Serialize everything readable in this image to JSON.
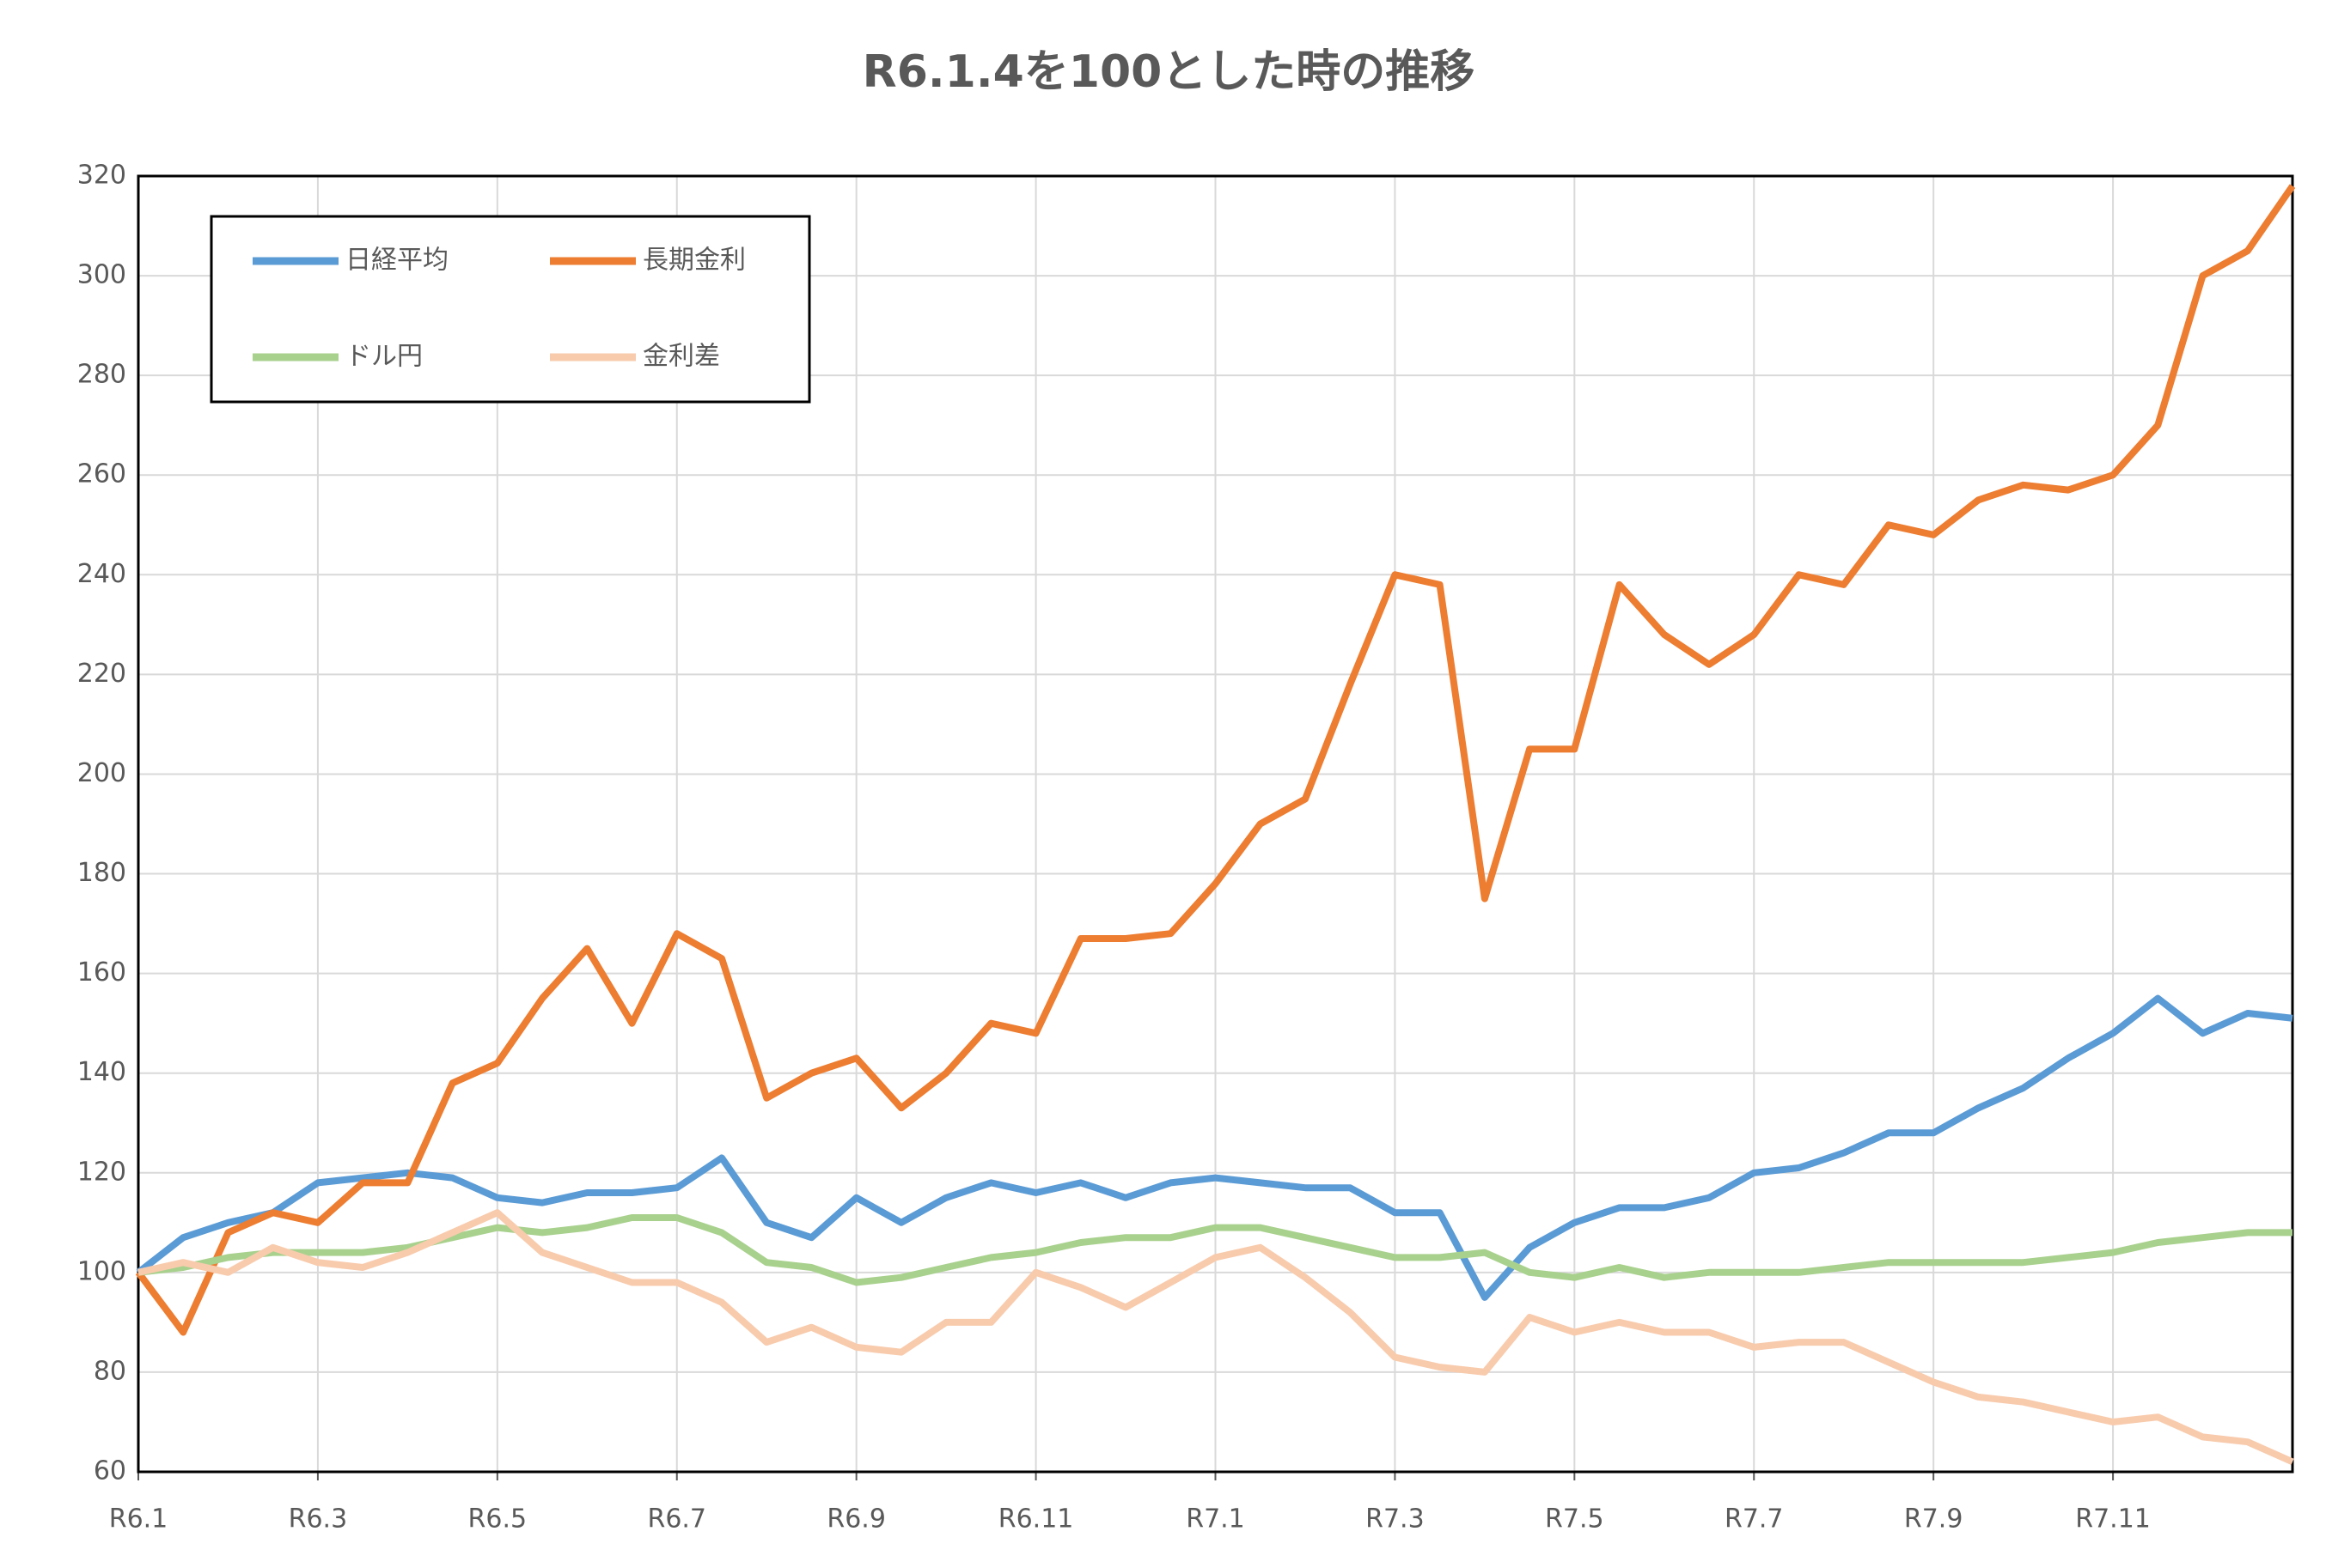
{
  "chart_data": {
    "type": "line",
    "title": "R6.1.4を100とした時の推移",
    "x": [
      0,
      0.5,
      1,
      1.5,
      2,
      2.5,
      3,
      3.5,
      4,
      4.5,
      5,
      5.5,
      6,
      6.5,
      7,
      7.5,
      8,
      8.5,
      9,
      9.5,
      10,
      10.5,
      11,
      11.5,
      12,
      12.5,
      13,
      13.5,
      14,
      14.5,
      15,
      15.5,
      16,
      16.5,
      17,
      17.5,
      18,
      18.5,
      19,
      19.5,
      20,
      20.5,
      21,
      21.5,
      22,
      22.5,
      23,
      23.5,
      24
    ],
    "xlim": [
      0,
      24
    ],
    "xticks": [
      {
        "value": 0,
        "label": "R6.1"
      },
      {
        "value": 2,
        "label": "R6.3"
      },
      {
        "value": 4,
        "label": "R6.5"
      },
      {
        "value": 6,
        "label": "R6.7"
      },
      {
        "value": 8,
        "label": "R6.9"
      },
      {
        "value": 10,
        "label": "R6.11"
      },
      {
        "value": 12,
        "label": "R7.1"
      },
      {
        "value": 14,
        "label": "R7.3"
      },
      {
        "value": 16,
        "label": "R7.5"
      },
      {
        "value": 18,
        "label": "R7.7"
      },
      {
        "value": 20,
        "label": "R7.9"
      },
      {
        "value": 22,
        "label": "R7.11"
      }
    ],
    "ylim": [
      60,
      320
    ],
    "yticks": [
      60,
      80,
      100,
      120,
      140,
      160,
      180,
      200,
      220,
      240,
      260,
      280,
      300,
      320
    ],
    "grid": true,
    "legend": "top-left",
    "series": [
      {
        "name": "日経平均",
        "color": "#5b9bd5",
        "values": [
          100,
          107,
          110,
          112,
          118,
          119,
          120,
          119,
          115,
          114,
          116,
          116,
          117,
          123,
          110,
          107,
          115,
          110,
          115,
          118,
          116,
          118,
          115,
          118,
          119,
          118,
          117,
          117,
          112,
          112,
          95,
          105,
          110,
          113,
          113,
          115,
          120,
          121,
          124,
          128,
          128,
          133,
          137,
          143,
          148,
          155,
          148,
          152,
          151
        ]
      },
      {
        "name": "長期金利",
        "color": "#ed7d31",
        "values": [
          100,
          88,
          108,
          112,
          110,
          118,
          118,
          138,
          142,
          155,
          165,
          150,
          168,
          163,
          135,
          140,
          143,
          133,
          140,
          150,
          148,
          167,
          167,
          168,
          178,
          190,
          195,
          218,
          240,
          238,
          175,
          205,
          205,
          238,
          228,
          222,
          228,
          240,
          238,
          250,
          248,
          255,
          258,
          257,
          260,
          270,
          300,
          305,
          318
        ]
      },
      {
        "name": "ドル円",
        "color": "#a9d18e",
        "values": [
          100,
          101,
          103,
          104,
          104,
          104,
          105,
          107,
          109,
          108,
          109,
          111,
          111,
          108,
          102,
          101,
          98,
          99,
          101,
          103,
          104,
          106,
          107,
          107,
          109,
          109,
          107,
          105,
          103,
          103,
          104,
          100,
          99,
          101,
          99,
          100,
          100,
          100,
          101,
          102,
          102,
          102,
          102,
          103,
          104,
          106,
          107,
          108,
          108
        ]
      },
      {
        "name": "金利差",
        "color": "#f8cbad",
        "values": [
          100,
          102,
          100,
          105,
          102,
          101,
          104,
          108,
          112,
          104,
          101,
          98,
          98,
          94,
          86,
          89,
          85,
          84,
          90,
          90,
          100,
          97,
          93,
          98,
          103,
          105,
          99,
          92,
          83,
          81,
          80,
          91,
          88,
          90,
          88,
          88,
          85,
          86,
          86,
          82,
          78,
          75,
          74,
          72,
          70,
          71,
          67,
          66,
          62
        ]
      }
    ]
  }
}
